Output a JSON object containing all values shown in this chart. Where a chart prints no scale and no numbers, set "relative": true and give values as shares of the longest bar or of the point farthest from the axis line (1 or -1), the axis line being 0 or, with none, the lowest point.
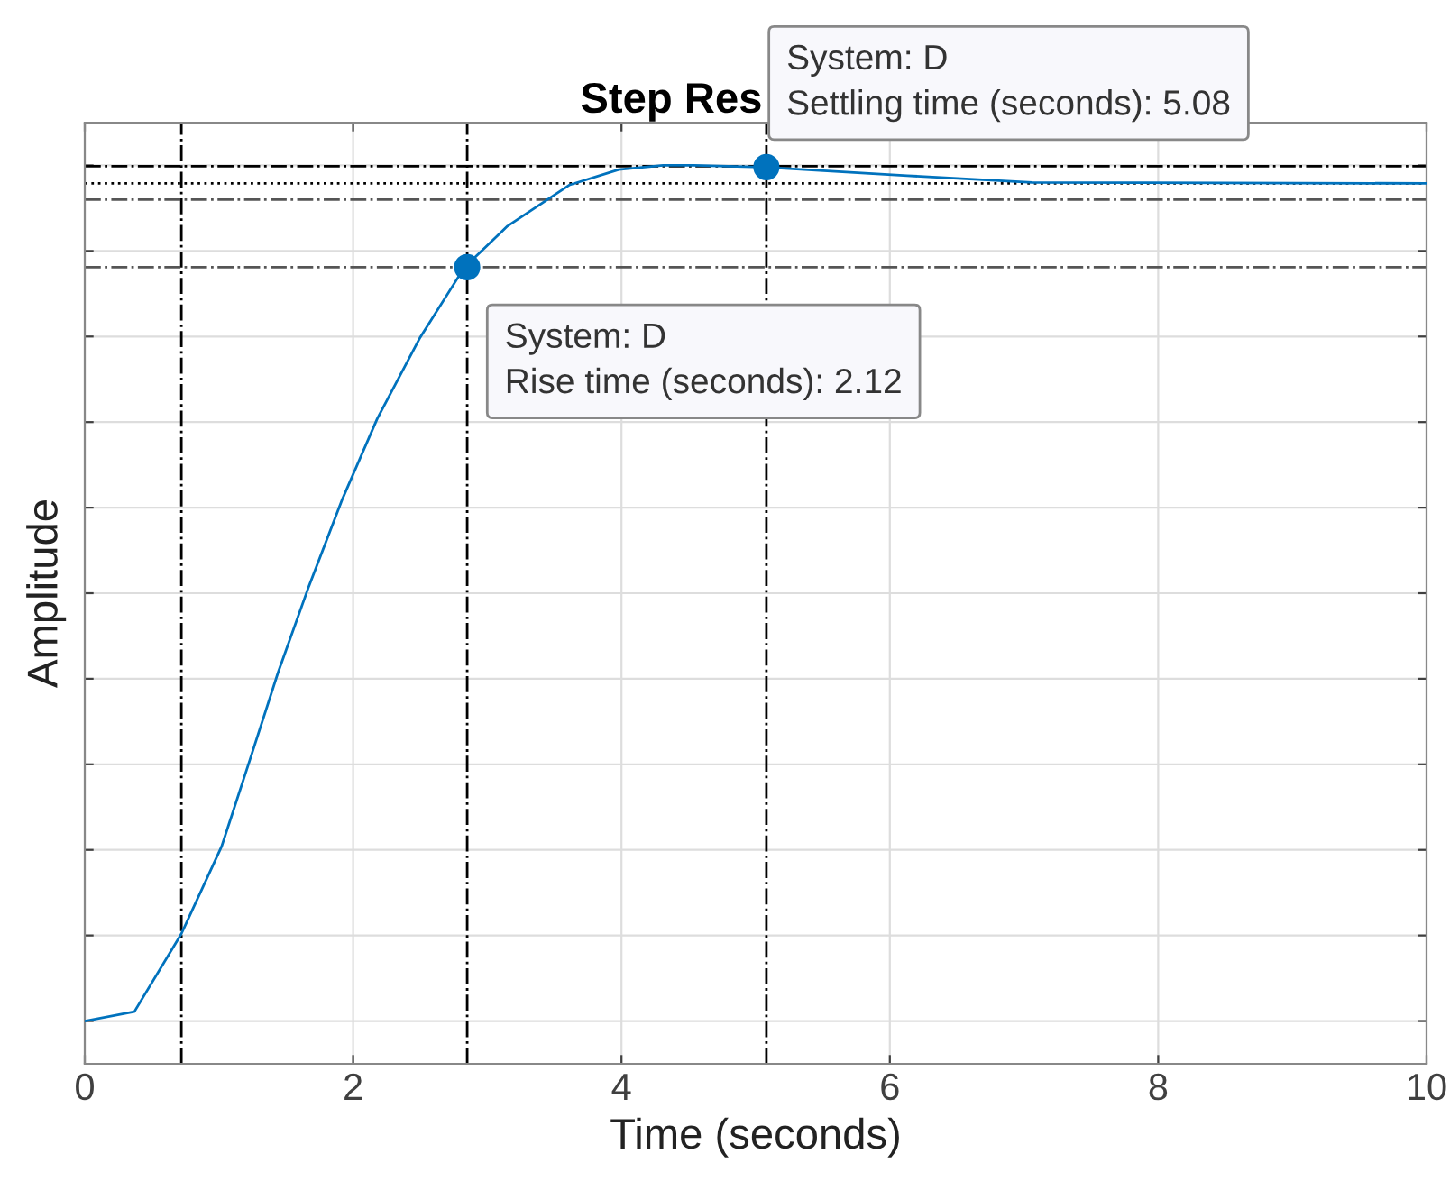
{
  "chart_data": {
    "type": "line",
    "title": "Step Res",
    "xlabel": "Time (seconds)",
    "ylabel": "Amplitude",
    "relative": true,
    "xlim": [
      0,
      10
    ],
    "xticks": [
      0,
      2,
      4,
      6,
      8,
      10
    ],
    "grid": true,
    "tick_labels": "x",
    "series": [
      {
        "color": "#0072bd",
        "marker": "none",
        "line_style": "solid",
        "x": [
          0,
          0.37,
          0.72,
          1.02,
          1.23,
          1.44,
          1.67,
          1.92,
          2.18,
          2.5,
          2.83,
          3.15,
          3.61,
          3.98,
          4.31,
          4.54,
          5.05,
          6.13,
          7.06,
          10
        ],
        "values": [
          0,
          0.011,
          0.102,
          0.204,
          0.305,
          0.407,
          0.508,
          0.61,
          0.704,
          0.799,
          0.881,
          0.929,
          0.977,
          0.995,
          1.0,
          1.0,
          0.998,
          0.988,
          0.98,
          0.979
        ]
      },
      {
        "type": "scatter",
        "color": "#0072bd",
        "marker": "circle",
        "x": [
          2.85,
          5.08
        ],
        "values": [
          0.881,
          0.998
        ]
      }
    ],
    "ref_lines": [
      {
        "axis": "x",
        "value": 0.72,
        "color": "#000000",
        "line_style": "dashdot"
      },
      {
        "axis": "x",
        "value": 2.85,
        "color": "#000000",
        "line_style": "dashdot"
      },
      {
        "axis": "x",
        "value": 5.08,
        "color": "#000000",
        "line_style": "dashdot"
      },
      {
        "axis": "y",
        "value": 0.881,
        "color": "#555555",
        "line_style": "dashdot"
      },
      {
        "axis": "y",
        "value": 0.999,
        "color": "#000000",
        "line_style": "dashdot"
      },
      {
        "axis": "y",
        "value": 0.96,
        "color": "#555555",
        "line_style": "dashdot"
      },
      {
        "axis": "y",
        "value": 0.979,
        "color": "#000000",
        "line_style": "dotted"
      }
    ],
    "annotations": [
      {
        "text": "System: D\nRise time (seconds): 2.12",
        "x": 2.85,
        "y": 0.881
      },
      {
        "text": "System: D\nSettling time (seconds): 5.08",
        "x": 5.08,
        "y": 0.998
      }
    ]
  }
}
